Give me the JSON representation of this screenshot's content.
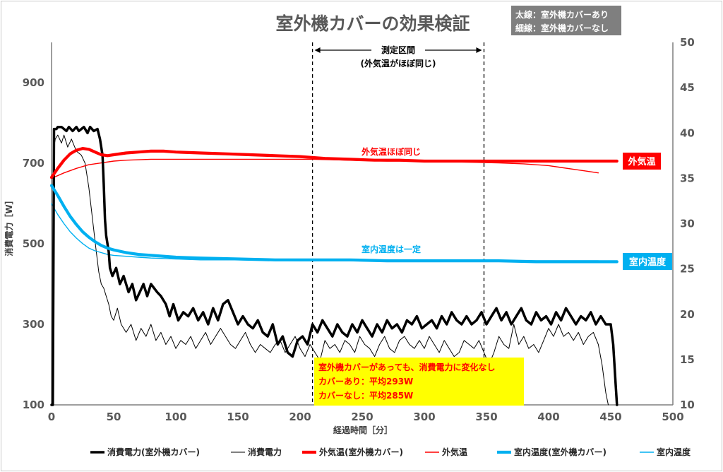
{
  "chart_data": {
    "type": "line",
    "title": "室外機カバーの効果検証",
    "note_lines": [
      "太線：室外機カバーあり",
      "細線：室外機カバーなし"
    ],
    "xlabel": "経過時間［分］",
    "ylabel": "消費電力［W］",
    "xlim": [
      0,
      500
    ],
    "x_ticks": [
      "0",
      "50",
      "100",
      "150",
      "200",
      "250",
      "300",
      "350",
      "400",
      "450",
      "500"
    ],
    "ylim_left": [
      100,
      1000
    ],
    "y_ticks_left": [
      "100",
      "300",
      "500",
      "700",
      "900"
    ],
    "ylim_right": [
      10,
      50
    ],
    "y_ticks_right": [
      "10",
      "15",
      "20",
      "25",
      "30",
      "35",
      "40",
      "45",
      "50"
    ],
    "measurement_interval": {
      "start": 210,
      "end": 348,
      "label_line1": "測定区間",
      "label_line2": "(外気温がほぼ同じ)"
    },
    "annotations": {
      "outdoor_same": "外気温ほぼ同じ",
      "indoor_constant": "室内温度は一定",
      "result_box": [
        "室外機カバーがあっても、消費電力に変化なし",
        "カバーあり：平均293W",
        "カバーなし：平均285W"
      ],
      "tag_outdoor": "外気温",
      "tag_indoor": "室内温度"
    },
    "legend": [
      "消費電力(室外機カバー)",
      "消費電力",
      "外気温(室外機カバー)",
      "外気温",
      "室内温度(室外機カバー)",
      "室内温度"
    ],
    "colors": {
      "power": "#000000",
      "outdoor": "#ff0000",
      "indoor": "#00b0f0",
      "result_box": "#ffff00",
      "result_text": "#ff0000",
      "axis_text": "#595959"
    },
    "series": [
      {
        "name": "消費電力(室外機カバー)",
        "axis": "left",
        "thick": true,
        "x": [
          0,
          1,
          2,
          4,
          5,
          8,
          12,
          14,
          17,
          20,
          22,
          26,
          29,
          31,
          34,
          37,
          39,
          41,
          42,
          43,
          44,
          45,
          46,
          47,
          49,
          52,
          55,
          58,
          62,
          65,
          68,
          71,
          74,
          77,
          80,
          85,
          88,
          92,
          95,
          98,
          102,
          106,
          110,
          114,
          118,
          122,
          126,
          130,
          134,
          138,
          142,
          146,
          150,
          154,
          158,
          162,
          166,
          170,
          174,
          178,
          182,
          186,
          190,
          194,
          198,
          202,
          206,
          210,
          214,
          218,
          222,
          226,
          230,
          234,
          238,
          242,
          246,
          250,
          254,
          258,
          262,
          266,
          270,
          274,
          278,
          282,
          286,
          290,
          294,
          298,
          302,
          306,
          310,
          314,
          318,
          322,
          326,
          330,
          334,
          338,
          342,
          346,
          350,
          354,
          358,
          362,
          366,
          370,
          374,
          378,
          382,
          386,
          390,
          394,
          398,
          402,
          406,
          410,
          414,
          418,
          422,
          426,
          430,
          434,
          438,
          442,
          446,
          450,
          452,
          454,
          455
        ],
        "values": [
          100,
          100,
          785,
          785,
          790,
          790,
          780,
          790,
          780,
          790,
          780,
          790,
          775,
          790,
          780,
          785,
          760,
          720,
          650,
          560,
          520,
          500,
          480,
          440,
          420,
          440,
          400,
          420,
          380,
          400,
          360,
          380,
          400,
          370,
          400,
          380,
          370,
          350,
          320,
          350,
          310,
          330,
          320,
          340,
          310,
          330,
          300,
          340,
          310,
          350,
          360,
          330,
          300,
          320,
          300,
          290,
          310,
          280,
          270,
          300,
          250,
          270,
          230,
          220,
          260,
          270,
          250,
          300,
          280,
          310,
          290,
          270,
          300,
          280,
          270,
          300,
          280,
          310,
          290,
          270,
          300,
          280,
          310,
          290,
          300,
          280,
          310,
          300,
          320,
          290,
          300,
          310,
          290,
          320,
          300,
          330,
          310,
          300,
          320,
          300,
          310,
          330,
          300,
          320,
          340,
          310,
          330,
          300,
          320,
          340,
          310,
          300,
          330,
          310,
          320,
          300,
          330,
          310,
          340,
          320,
          300,
          320,
          310,
          330,
          300,
          320,
          300,
          300,
          250,
          150,
          100
        ]
      },
      {
        "name": "消費電力",
        "axis": "left",
        "thick": false,
        "x": [
          0,
          1,
          2,
          3,
          5,
          8,
          10,
          13,
          16,
          20,
          24,
          27,
          30,
          33,
          36,
          38,
          40,
          42,
          44,
          46,
          48,
          50,
          53,
          56,
          60,
          64,
          68,
          72,
          76,
          80,
          84,
          88,
          92,
          96,
          100,
          104,
          108,
          112,
          116,
          120,
          124,
          128,
          132,
          136,
          140,
          144,
          148,
          152,
          156,
          160,
          164,
          168,
          172,
          176,
          180,
          184,
          188,
          192,
          196,
          200,
          204,
          208,
          212,
          216,
          220,
          224,
          228,
          232,
          236,
          240,
          244,
          248,
          252,
          256,
          260,
          264,
          268,
          272,
          276,
          280,
          284,
          288,
          292,
          296,
          300,
          304,
          308,
          312,
          316,
          320,
          324,
          328,
          332,
          336,
          340,
          344,
          348,
          352,
          356,
          360,
          364,
          368,
          372,
          376,
          380,
          384,
          388,
          392,
          396,
          400,
          404,
          408,
          412,
          416,
          420,
          424,
          428,
          432,
          436,
          440,
          443,
          446,
          448
        ],
        "values": [
          100,
          100,
          740,
          760,
          770,
          750,
          770,
          740,
          760,
          730,
          720,
          700,
          640,
          560,
          480,
          430,
          400,
          390,
          370,
          350,
          320,
          310,
          340,
          300,
          280,
          300,
          260,
          290,
          270,
          300,
          260,
          280,
          250,
          270,
          240,
          260,
          250,
          270,
          240,
          260,
          280,
          250,
          270,
          290,
          270,
          250,
          240,
          260,
          280,
          250,
          230,
          250,
          240,
          230,
          250,
          260,
          230,
          250,
          270,
          240,
          220,
          250,
          230,
          210,
          260,
          240,
          250,
          230,
          260,
          250,
          230,
          270,
          250,
          240,
          220,
          250,
          270,
          240,
          230,
          260,
          270,
          250,
          240,
          260,
          240,
          270,
          250,
          230,
          260,
          240,
          220,
          230,
          260,
          250,
          240,
          260,
          230,
          200,
          230,
          270,
          250,
          240,
          300,
          250,
          270,
          240,
          250,
          230,
          260,
          290,
          270,
          300,
          270,
          280,
          260,
          280,
          250,
          270,
          280,
          250,
          200,
          130,
          100
        ]
      },
      {
        "name": "外気温(室外機カバー)",
        "axis": "right",
        "thick": true,
        "x": [
          0,
          5,
          10,
          15,
          20,
          25,
          30,
          35,
          40,
          45,
          50,
          60,
          70,
          80,
          90,
          100,
          120,
          140,
          160,
          180,
          200,
          220,
          240,
          260,
          280,
          300,
          320,
          340,
          360,
          380,
          400,
          420,
          440,
          450,
          455
        ],
        "values": [
          35.1,
          36.1,
          37,
          37.7,
          38.1,
          38.3,
          38.2,
          37.9,
          37.6,
          37.5,
          37.6,
          37.8,
          37.9,
          38,
          38,
          37.9,
          37.8,
          37.7,
          37.6,
          37.5,
          37.4,
          37.2,
          37.1,
          37,
          37,
          36.9,
          36.9,
          36.9,
          36.9,
          36.9,
          36.9,
          36.9,
          36.9,
          36.9,
          36.9
        ]
      },
      {
        "name": "外気温",
        "axis": "right",
        "thick": false,
        "x": [
          0,
          10,
          20,
          30,
          40,
          50,
          60,
          80,
          100,
          120,
          150,
          180,
          210,
          240,
          270,
          300,
          330,
          360,
          380,
          400,
          410,
          420,
          430,
          440
        ],
        "values": [
          35,
          35.6,
          36.1,
          36.5,
          36.7,
          36.9,
          37,
          37.1,
          37.1,
          37.1,
          37.1,
          37.1,
          37.1,
          37,
          36.9,
          36.9,
          36.8,
          36.7,
          36.6,
          36.4,
          36.2,
          36,
          35.8,
          35.6
        ]
      },
      {
        "name": "室内温度(室外機カバー)",
        "axis": "right",
        "thick": true,
        "x": [
          0,
          5,
          10,
          15,
          20,
          25,
          30,
          35,
          40,
          45,
          50,
          60,
          70,
          80,
          100,
          120,
          150,
          180,
          210,
          240,
          270,
          300,
          330,
          360,
          390,
          420,
          450,
          455
        ],
        "values": [
          34.2,
          33.1,
          31.9,
          30.8,
          29.9,
          29.1,
          28.5,
          28,
          27.6,
          27.3,
          27.1,
          26.8,
          26.6,
          26.5,
          26.3,
          26.2,
          26.1,
          26,
          26,
          26,
          25.9,
          25.9,
          25.9,
          25.9,
          25.8,
          25.8,
          25.8,
          25.8
        ]
      },
      {
        "name": "室内温度",
        "axis": "right",
        "thick": false,
        "x": [
          0,
          5,
          10,
          15,
          20,
          25,
          30,
          35,
          40,
          45,
          50,
          60,
          70,
          80,
          100,
          120,
          150,
          200,
          250,
          300,
          350,
          400,
          440
        ],
        "values": [
          32.2,
          31,
          30,
          29.1,
          28.4,
          27.8,
          27.3,
          27,
          26.8,
          26.6,
          26.5,
          26.4,
          26.3,
          26.2,
          26.1,
          26,
          26,
          25.9,
          25.9,
          25.9,
          25.9,
          25.9,
          25.9
        ]
      }
    ]
  }
}
